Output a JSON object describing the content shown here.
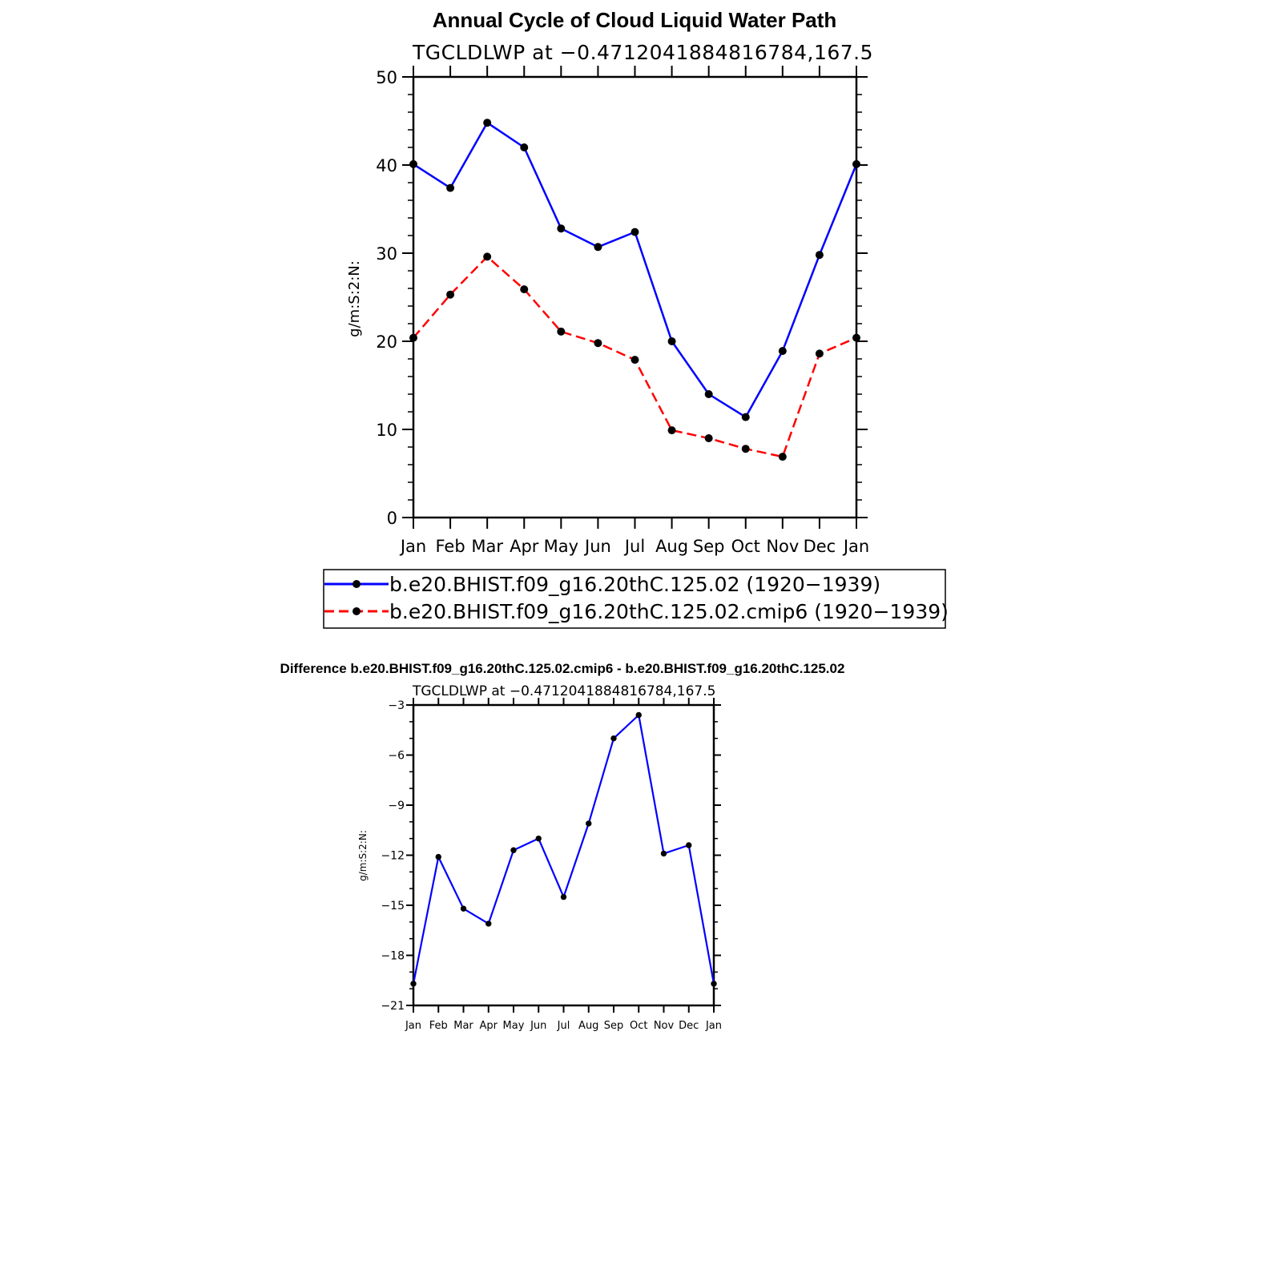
{
  "chart_data": [
    {
      "type": "line",
      "title": "Annual Cycle of Cloud Liquid Water Path",
      "subtitle": "TGCLDLWP at −0.4712041884816784,167.5",
      "xlabel": "",
      "ylabel": "g/m:S:2:N:",
      "ylim": [
        0,
        50
      ],
      "yticks": [
        "0",
        "10",
        "20",
        "30",
        "40",
        "50"
      ],
      "categories": [
        "Jan",
        "Feb",
        "Mar",
        "Apr",
        "May",
        "Jun",
        "Jul",
        "Aug",
        "Sep",
        "Oct",
        "Nov",
        "Dec",
        "Jan"
      ],
      "series": [
        {
          "name": "b.e20.BHIST.f09_g16.20thC.125.02 (1920−1939)",
          "color": "#0000ff",
          "dash": "solid",
          "values": [
            40.1,
            37.4,
            44.8,
            42.0,
            32.8,
            30.7,
            32.4,
            20.0,
            14.0,
            11.4,
            18.9,
            29.8,
            40.1
          ]
        },
        {
          "name": "b.e20.BHIST.f09_g16.20thC.125.02.cmip6 (1920−1939)",
          "color": "#ff0000",
          "dash": "dashed",
          "values": [
            20.4,
            25.3,
            29.6,
            25.9,
            21.1,
            19.8,
            17.9,
            9.9,
            9.0,
            7.8,
            6.9,
            18.6,
            20.4
          ]
        }
      ],
      "legend": "below"
    },
    {
      "type": "line",
      "title": "Difference b.e20.BHIST.f09_g16.20thC.125.02.cmip6 - b.e20.BHIST.f09_g16.20thC.125.02",
      "subtitle": "TGCLDLWP at −0.4712041884816784,167.5",
      "xlabel": "",
      "ylabel": "g/m:S:2:N:",
      "ylim": [
        -21,
        -3
      ],
      "yticks": [
        "−21",
        "−18",
        "−15",
        "−12",
        "−9",
        "−6",
        "−3"
      ],
      "categories": [
        "Jan",
        "Feb",
        "Mar",
        "Apr",
        "May",
        "Jun",
        "Jul",
        "Aug",
        "Sep",
        "Oct",
        "Nov",
        "Dec",
        "Jan"
      ],
      "series": [
        {
          "name": "",
          "color": "#0000ff",
          "dash": "solid",
          "values": [
            -19.7,
            -12.1,
            -15.2,
            -16.1,
            -11.7,
            -11.0,
            -14.5,
            -10.1,
            -5.0,
            -3.6,
            -11.9,
            -11.4,
            -19.7
          ]
        }
      ]
    }
  ]
}
